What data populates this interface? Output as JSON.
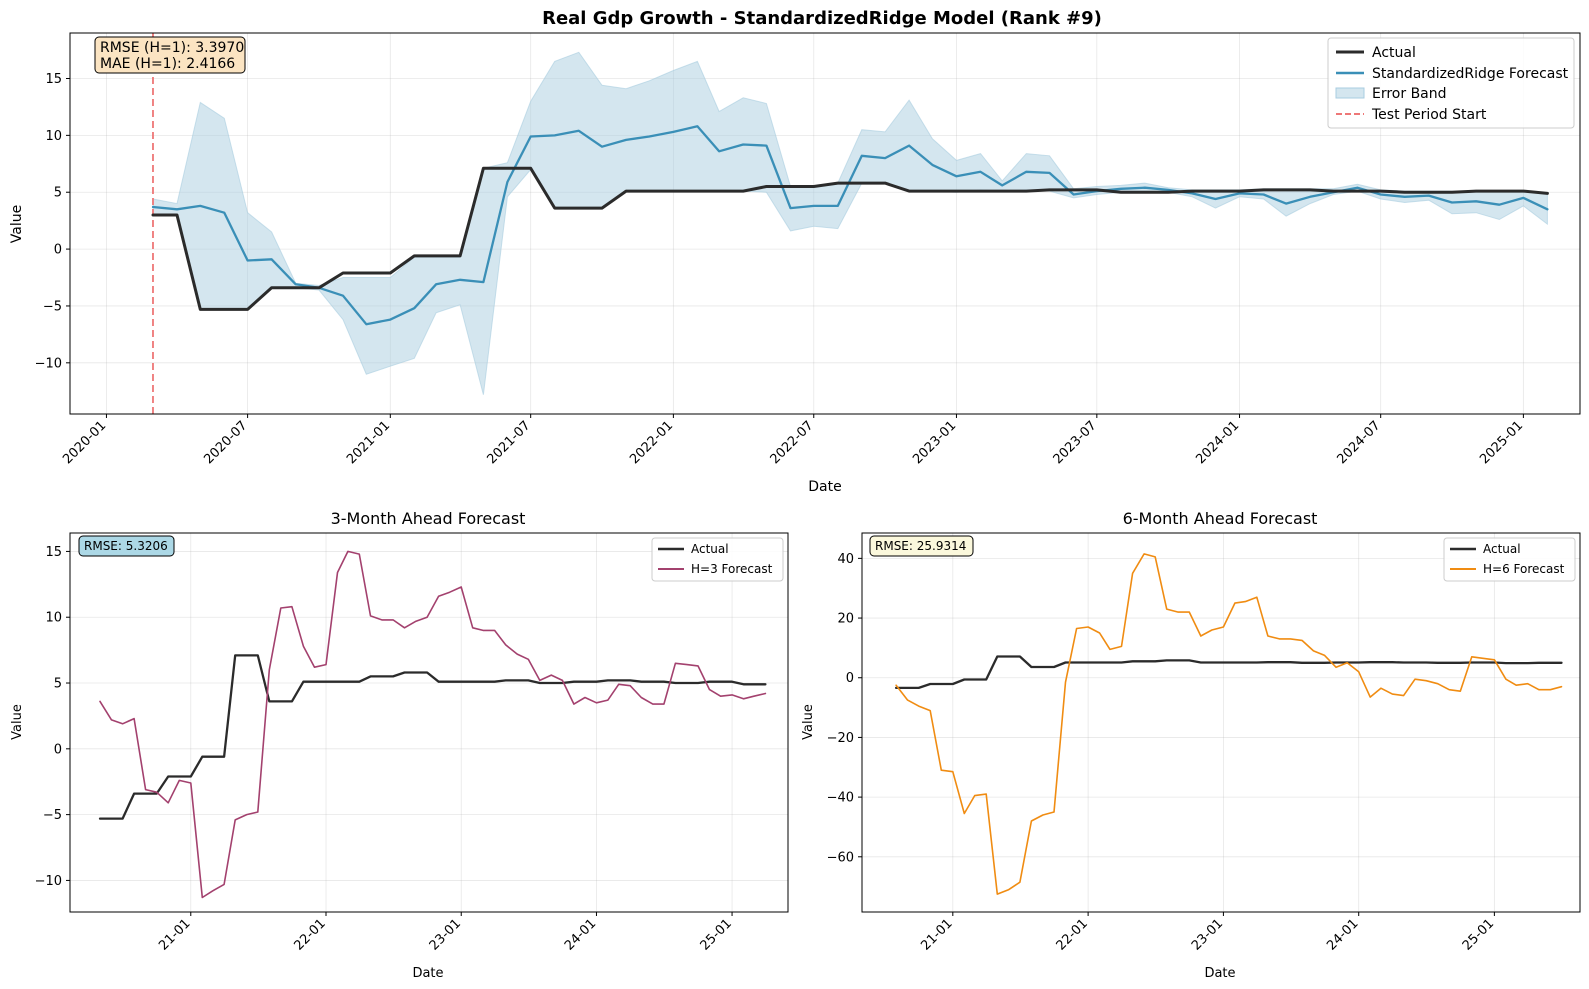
{
  "chart_data": [
    {
      "id": "main",
      "type": "line",
      "title": "Real Gdp Growth - StandardizedRidge Model (Rank #9)",
      "xlabel": "Date",
      "ylabel": "Value",
      "x_range": [
        "2019-11-15",
        "2025-03-15"
      ],
      "ylim": [
        -14.5,
        19
      ],
      "x_ticks": [
        {
          "date": "2020-01-01",
          "label": "2020-01"
        },
        {
          "date": "2020-07-01",
          "label": "2020-07"
        },
        {
          "date": "2021-01-01",
          "label": "2021-01"
        },
        {
          "date": "2021-07-01",
          "label": "2021-07"
        },
        {
          "date": "2022-01-01",
          "label": "2022-01"
        },
        {
          "date": "2022-07-01",
          "label": "2022-07"
        },
        {
          "date": "2023-01-01",
          "label": "2023-01"
        },
        {
          "date": "2023-07-01",
          "label": "2023-07"
        },
        {
          "date": "2024-01-01",
          "label": "2024-01"
        },
        {
          "date": "2024-07-01",
          "label": "2024-07"
        },
        {
          "date": "2025-01-01",
          "label": "2025-01"
        }
      ],
      "y_ticks": [
        -10,
        -5,
        0,
        5,
        10,
        15
      ],
      "grid": true,
      "legend_placement": "top-right",
      "test_period_start": "2020-03-01",
      "x": [
        "2020-03-01",
        "2020-04-01",
        "2020-05-01",
        "2020-06-01",
        "2020-07-01",
        "2020-08-01",
        "2020-09-01",
        "2020-10-01",
        "2020-11-01",
        "2020-12-01",
        "2021-01-01",
        "2021-02-01",
        "2021-03-01",
        "2021-04-01",
        "2021-05-01",
        "2021-06-01",
        "2021-07-01",
        "2021-08-01",
        "2021-09-01",
        "2021-10-01",
        "2021-11-01",
        "2021-12-01",
        "2022-01-01",
        "2022-02-01",
        "2022-03-01",
        "2022-04-01",
        "2022-05-01",
        "2022-06-01",
        "2022-07-01",
        "2022-08-01",
        "2022-09-01",
        "2022-10-01",
        "2022-11-01",
        "2022-12-01",
        "2023-01-01",
        "2023-02-01",
        "2023-03-01",
        "2023-04-01",
        "2023-05-01",
        "2023-06-01",
        "2023-07-01",
        "2023-08-01",
        "2023-09-01",
        "2023-10-01",
        "2023-11-01",
        "2023-12-01",
        "2024-01-01",
        "2024-02-01",
        "2024-03-01",
        "2024-04-01",
        "2024-05-01",
        "2024-06-01",
        "2024-07-01",
        "2024-08-01",
        "2024-09-01",
        "2024-10-01",
        "2024-11-01",
        "2024-12-01",
        "2025-01-01",
        "2025-02-01"
      ],
      "series": [
        {
          "name": "Actual",
          "color": "#2b2b2b",
          "values": [
            3.0,
            3.0,
            -5.3,
            -5.3,
            -5.3,
            -3.4,
            -3.4,
            -3.4,
            -2.1,
            -2.1,
            -2.1,
            -0.6,
            -0.6,
            -0.6,
            7.1,
            7.1,
            7.1,
            3.6,
            3.6,
            3.6,
            5.1,
            5.1,
            5.1,
            5.1,
            5.1,
            5.1,
            5.5,
            5.5,
            5.5,
            5.8,
            5.8,
            5.8,
            5.1,
            5.1,
            5.1,
            5.1,
            5.1,
            5.1,
            5.2,
            5.2,
            5.2,
            5.0,
            5.0,
            5.0,
            5.1,
            5.1,
            5.1,
            5.2,
            5.2,
            5.2,
            5.1,
            5.1,
            5.1,
            5.0,
            5.0,
            5.0,
            5.1,
            5.1,
            5.1,
            4.9
          ]
        },
        {
          "name": "StandardizedRidge Forecast",
          "color": "#3a8fb7",
          "values": [
            3.7,
            3.5,
            3.8,
            3.2,
            -1.0,
            -0.9,
            -3.1,
            -3.4,
            -4.1,
            -6.6,
            -6.2,
            -5.2,
            -3.1,
            -2.7,
            -2.9,
            5.9,
            9.9,
            10.0,
            10.4,
            9.0,
            9.6,
            9.9,
            10.3,
            10.8,
            8.6,
            9.2,
            9.1,
            3.6,
            3.8,
            3.8,
            8.2,
            8.0,
            9.1,
            7.4,
            6.4,
            6.8,
            5.6,
            6.8,
            6.7,
            4.8,
            5.1,
            5.3,
            5.4,
            5.2,
            4.9,
            4.4,
            4.9,
            4.8,
            4.0,
            4.6,
            5.0,
            5.4,
            4.8,
            4.6,
            4.7,
            4.1,
            4.2,
            3.9,
            4.5,
            3.5
          ]
        }
      ],
      "error_band": {
        "name": "Error Band",
        "color": "#a9cde0",
        "upper": [
          4.4,
          4.0,
          12.9,
          11.5,
          3.2,
          1.5,
          -3.0,
          -3.2,
          -2.5,
          -2.5,
          -2.5,
          -0.7,
          -0.7,
          -0.7,
          7.1,
          7.6,
          13.0,
          16.5,
          17.3,
          14.4,
          14.1,
          14.8,
          15.7,
          16.5,
          12.1,
          13.3,
          12.8,
          5.5,
          5.5,
          5.8,
          10.5,
          10.3,
          13.1,
          9.7,
          7.8,
          8.4,
          6.0,
          8.4,
          8.2,
          5.3,
          5.5,
          5.6,
          5.8,
          5.4,
          5.2,
          5.2,
          5.2,
          5.3,
          5.3,
          5.3,
          5.3,
          5.7,
          5.2,
          5.1,
          5.1,
          5.1,
          5.1,
          5.1,
          5.1,
          4.9
        ],
        "lower": [
          3.0,
          3.0,
          -5.3,
          -5.3,
          -5.3,
          -3.4,
          -3.4,
          -3.6,
          -6.2,
          -11.0,
          -10.3,
          -9.6,
          -5.6,
          -4.9,
          -12.8,
          4.6,
          7.0,
          3.6,
          3.6,
          3.6,
          5.1,
          5.1,
          5.1,
          5.1,
          5.1,
          5.1,
          5.0,
          1.6,
          2.0,
          1.8,
          5.8,
          5.8,
          5.1,
          5.1,
          5.0,
          5.2,
          5.1,
          5.2,
          5.1,
          4.5,
          4.8,
          5.0,
          5.0,
          5.0,
          4.6,
          3.6,
          4.6,
          4.4,
          2.9,
          4.0,
          4.8,
          5.1,
          4.4,
          4.1,
          4.3,
          3.1,
          3.2,
          2.6,
          3.8,
          2.2
        ]
      },
      "annotation": [
        "RMSE (H=1): 3.3970",
        "MAE (H=1): 2.4166"
      ],
      "annotation_color": "#fbe4c2",
      "test_line_name": "Test Period Start",
      "test_line_color": "#ee7777"
    },
    {
      "id": "h3",
      "type": "line",
      "title": "3-Month Ahead Forecast",
      "xlabel": "Date",
      "ylabel": "Value",
      "x_range": [
        "2020-02-10",
        "2025-06-01"
      ],
      "ylim": [
        -12.4,
        16.4
      ],
      "x_ticks": [
        {
          "date": "2021-01-01",
          "label": "21-01"
        },
        {
          "date": "2022-01-01",
          "label": "22-01"
        },
        {
          "date": "2023-01-01",
          "label": "23-01"
        },
        {
          "date": "2024-01-01",
          "label": "24-01"
        },
        {
          "date": "2025-01-01",
          "label": "25-01"
        }
      ],
      "y_ticks": [
        -10,
        -5,
        0,
        5,
        10,
        15
      ],
      "grid": true,
      "legend_placement": "top-right",
      "x": [
        "2020-05-01",
        "2020-06-01",
        "2020-07-01",
        "2020-08-01",
        "2020-09-01",
        "2020-10-01",
        "2020-11-01",
        "2020-12-01",
        "2021-01-01",
        "2021-02-01",
        "2021-03-01",
        "2021-04-01",
        "2021-05-01",
        "2021-06-01",
        "2021-07-01",
        "2021-08-01",
        "2021-09-01",
        "2021-10-01",
        "2021-11-01",
        "2021-12-01",
        "2022-01-01",
        "2022-02-01",
        "2022-03-01",
        "2022-04-01",
        "2022-05-01",
        "2022-06-01",
        "2022-07-01",
        "2022-08-01",
        "2022-09-01",
        "2022-10-01",
        "2022-11-01",
        "2022-12-01",
        "2023-01-01",
        "2023-02-01",
        "2023-03-01",
        "2023-04-01",
        "2023-05-01",
        "2023-06-01",
        "2023-07-01",
        "2023-08-01",
        "2023-09-01",
        "2023-10-01",
        "2023-11-01",
        "2023-12-01",
        "2024-01-01",
        "2024-02-01",
        "2024-03-01",
        "2024-04-01",
        "2024-05-01",
        "2024-06-01",
        "2024-07-01",
        "2024-08-01",
        "2024-09-01",
        "2024-10-01",
        "2024-11-01",
        "2024-12-01",
        "2025-01-01",
        "2025-02-01",
        "2025-03-01",
        "2025-04-01"
      ],
      "series": [
        {
          "name": "Actual",
          "color": "#2b2b2b",
          "values": [
            -5.3,
            -5.3,
            -5.3,
            -3.4,
            -3.4,
            -3.4,
            -2.1,
            -2.1,
            -2.1,
            -0.6,
            -0.6,
            -0.6,
            7.1,
            7.1,
            7.1,
            3.6,
            3.6,
            3.6,
            5.1,
            5.1,
            5.1,
            5.1,
            5.1,
            5.1,
            5.5,
            5.5,
            5.5,
            5.8,
            5.8,
            5.8,
            5.1,
            5.1,
            5.1,
            5.1,
            5.1,
            5.1,
            5.2,
            5.2,
            5.2,
            5.0,
            5.0,
            5.0,
            5.1,
            5.1,
            5.1,
            5.2,
            5.2,
            5.2,
            5.1,
            5.1,
            5.1,
            5.0,
            5.0,
            5.0,
            5.1,
            5.1,
            5.1,
            4.9,
            4.9,
            4.9
          ]
        },
        {
          "name": "H=3 Forecast",
          "color": "#a3416e",
          "values": [
            3.6,
            2.2,
            1.9,
            2.3,
            -3.1,
            -3.3,
            -4.1,
            -2.4,
            -2.6,
            -11.3,
            -10.8,
            -10.3,
            -5.4,
            -5.0,
            -4.8,
            6.0,
            10.7,
            10.8,
            7.8,
            6.2,
            6.4,
            13.4,
            15.0,
            14.8,
            10.1,
            9.8,
            9.8,
            9.2,
            9.7,
            10.0,
            11.6,
            11.9,
            12.3,
            9.2,
            9.0,
            9.0,
            7.9,
            7.2,
            6.8,
            5.2,
            5.6,
            5.2,
            3.4,
            3.9,
            3.5,
            3.7,
            4.9,
            4.8,
            3.9,
            3.4,
            3.4,
            6.5,
            6.4,
            6.3,
            4.5,
            4.0,
            4.1,
            3.8,
            4.0,
            4.2
          ]
        }
      ],
      "annotation": [
        "RMSE: 5.3206"
      ],
      "annotation_color": "#acd8e6"
    },
    {
      "id": "h6",
      "type": "line",
      "title": "6-Month Ahead Forecast",
      "xlabel": "Date",
      "ylabel": "Value",
      "x_range": [
        "2020-05-01",
        "2025-08-20"
      ],
      "ylim": [
        -78.5,
        48.5
      ],
      "x_ticks": [
        {
          "date": "2021-01-01",
          "label": "21-01"
        },
        {
          "date": "2022-01-01",
          "label": "22-01"
        },
        {
          "date": "2023-01-01",
          "label": "23-01"
        },
        {
          "date": "2024-01-01",
          "label": "24-01"
        },
        {
          "date": "2025-01-01",
          "label": "25-01"
        }
      ],
      "y_ticks": [
        -60,
        -40,
        -20,
        0,
        20,
        40
      ],
      "grid": true,
      "legend_placement": "top-right",
      "x": [
        "2020-08-01",
        "2020-09-01",
        "2020-10-01",
        "2020-11-01",
        "2020-12-01",
        "2021-01-01",
        "2021-02-01",
        "2021-03-01",
        "2021-04-01",
        "2021-05-01",
        "2021-06-01",
        "2021-07-01",
        "2021-08-01",
        "2021-09-01",
        "2021-10-01",
        "2021-11-01",
        "2021-12-01",
        "2022-01-01",
        "2022-02-01",
        "2022-03-01",
        "2022-04-01",
        "2022-05-01",
        "2022-06-01",
        "2022-07-01",
        "2022-08-01",
        "2022-09-01",
        "2022-10-01",
        "2022-11-01",
        "2022-12-01",
        "2023-01-01",
        "2023-02-01",
        "2023-03-01",
        "2023-04-01",
        "2023-05-01",
        "2023-06-01",
        "2023-07-01",
        "2023-08-01",
        "2023-09-01",
        "2023-10-01",
        "2023-11-01",
        "2023-12-01",
        "2024-01-01",
        "2024-02-01",
        "2024-03-01",
        "2024-04-01",
        "2024-05-01",
        "2024-06-01",
        "2024-07-01",
        "2024-08-01",
        "2024-09-01",
        "2024-10-01",
        "2024-11-01",
        "2024-12-01",
        "2025-01-01",
        "2025-02-01",
        "2025-03-01",
        "2025-04-01",
        "2025-05-01",
        "2025-06-01",
        "2025-07-01"
      ],
      "series": [
        {
          "name": "Actual",
          "color": "#2b2b2b",
          "values": [
            -3.4,
            -3.4,
            -3.4,
            -2.1,
            -2.1,
            -2.1,
            -0.6,
            -0.6,
            -0.6,
            7.1,
            7.1,
            7.1,
            3.6,
            3.6,
            3.6,
            5.1,
            5.1,
            5.1,
            5.1,
            5.1,
            5.1,
            5.5,
            5.5,
            5.5,
            5.8,
            5.8,
            5.8,
            5.1,
            5.1,
            5.1,
            5.1,
            5.1,
            5.1,
            5.2,
            5.2,
            5.2,
            5.0,
            5.0,
            5.0,
            5.1,
            5.1,
            5.1,
            5.2,
            5.2,
            5.2,
            5.1,
            5.1,
            5.1,
            5.0,
            5.0,
            5.0,
            5.1,
            5.1,
            5.1,
            4.9,
            4.9,
            4.9,
            5.0,
            5.0,
            5.0
          ]
        },
        {
          "name": "H=6 Forecast",
          "color": "#f08c12",
          "values": [
            -2.5,
            -7.5,
            -9.5,
            -11.0,
            -31.0,
            -31.5,
            -45.5,
            -39.5,
            -39.0,
            -72.5,
            -71.0,
            -68.5,
            -48.0,
            -46.0,
            -45.0,
            -1.5,
            16.5,
            17.0,
            15.0,
            9.5,
            10.5,
            35.0,
            41.5,
            40.5,
            23.0,
            22.0,
            22.0,
            14.0,
            16.0,
            17.0,
            25.0,
            25.5,
            27.0,
            14.0,
            13.0,
            13.0,
            12.5,
            9.0,
            7.5,
            3.5,
            5.0,
            2.0,
            -6.5,
            -3.5,
            -5.5,
            -6.0,
            -0.5,
            -1.0,
            -2.0,
            -4.0,
            -4.5,
            7.0,
            6.5,
            6.0,
            -0.5,
            -2.5,
            -2.0,
            -4.0,
            -4.0,
            -3.0
          ]
        }
      ],
      "annotation": [
        "RMSE: 25.9314"
      ],
      "annotation_color": "#fbf8dc"
    }
  ]
}
